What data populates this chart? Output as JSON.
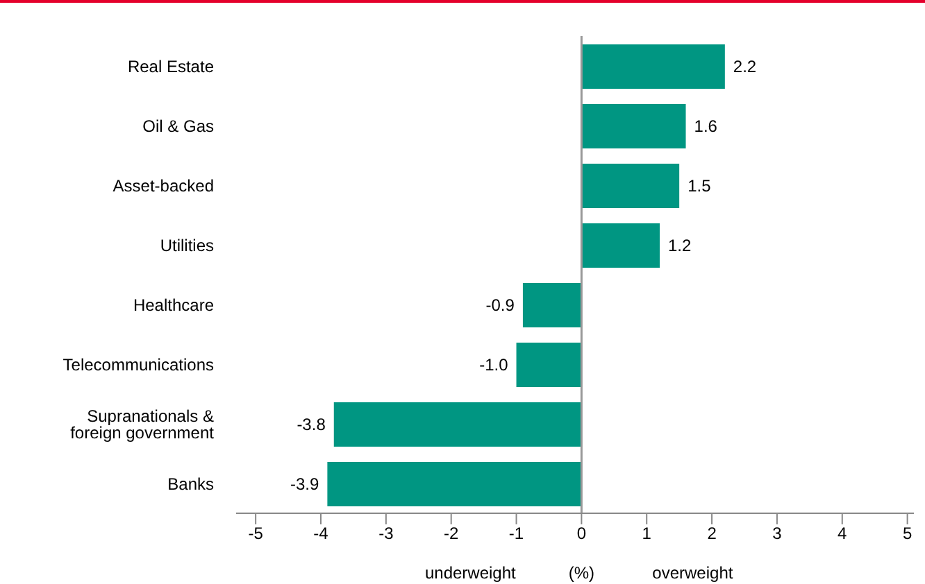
{
  "chart_data": {
    "type": "bar",
    "orientation": "horizontal",
    "categories": [
      "Real Estate",
      "Oil & Gas",
      "Asset-backed",
      "Utilities",
      "Healthcare",
      "Telecommunications",
      "Supranationals & foreign government",
      "Banks"
    ],
    "values": [
      2.2,
      1.6,
      1.5,
      1.2,
      -0.9,
      -1.0,
      -3.8,
      -3.9
    ],
    "color": "#009682",
    "value_labels": [
      "2.2",
      "1.6",
      "1.5",
      "1.2",
      "-0.9",
      "-1.0",
      "-3.8",
      "-3.9"
    ],
    "xlim": [
      -5.3,
      5.1
    ],
    "xticks": [
      -5,
      -4,
      -3,
      -2,
      -1,
      0,
      1,
      2,
      3,
      4,
      5
    ],
    "xlabel": "(%)",
    "annotations": [
      "underweight",
      "overweight"
    ],
    "ref_lines": [
      {
        "axis": "x",
        "value": 0,
        "color": "#999999"
      }
    ]
  }
}
